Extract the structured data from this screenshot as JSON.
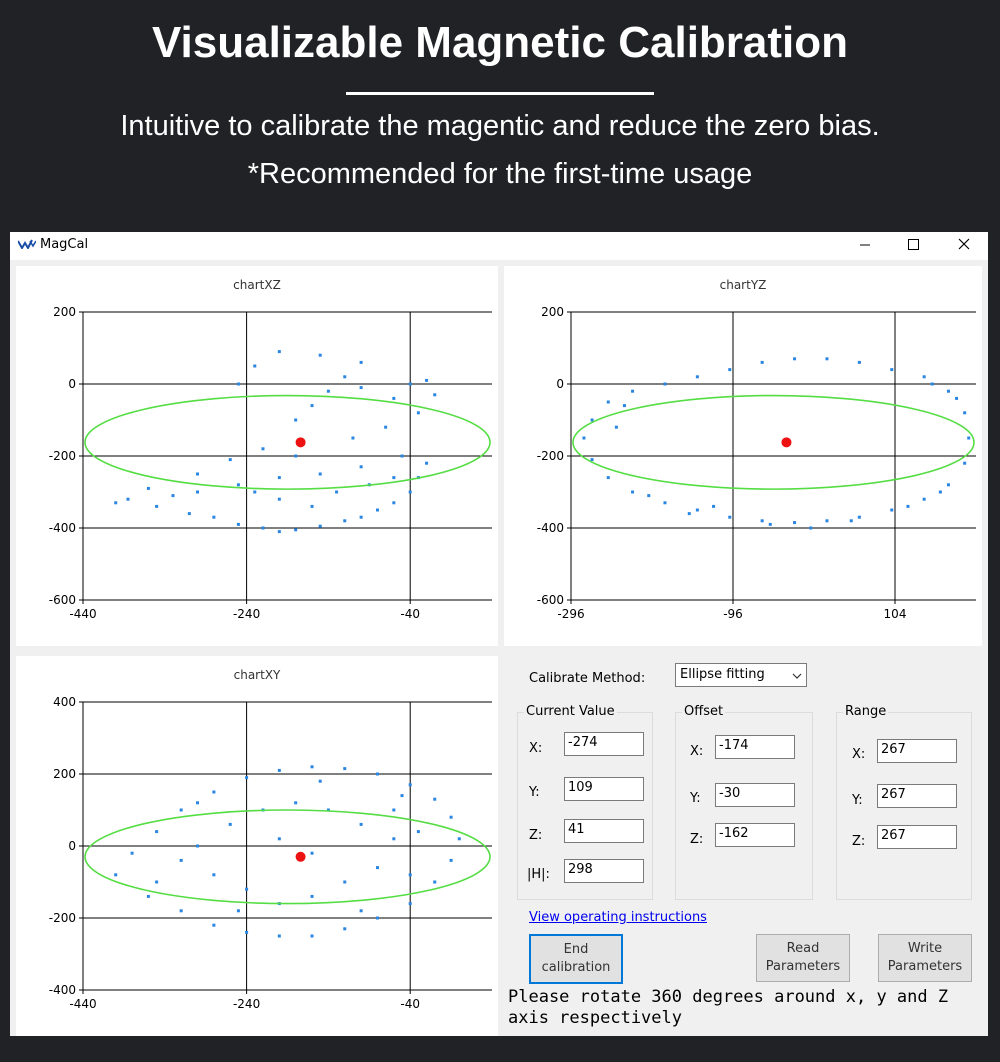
{
  "banner": {
    "title": "Visualizable Magnetic Calibration",
    "line1": "Intuitive to calibrate the magentic and reduce the zero bias.",
    "line2": "*Recommended for the first-time usage"
  },
  "window": {
    "title": "MagCal",
    "icon": "app-logo-icon",
    "controls": [
      "minimize-icon",
      "maximize-icon",
      "close-icon"
    ]
  },
  "colors": {
    "point": "#2a86e0",
    "ellipse": "#55dd44",
    "center": "#ee1111",
    "accent": "#0078d7"
  },
  "chart_data": [
    {
      "type": "scatter",
      "title": "chartXZ",
      "xlim": [
        -440,
        60
      ],
      "ylim": [
        -600,
        200
      ],
      "x_ticks": [
        -440,
        -240,
        -40
      ],
      "y_ticks": [
        200,
        0,
        -200,
        -400,
        -600
      ],
      "grid": true,
      "center_point": [
        -174,
        -162
      ],
      "ellipse": {
        "cx": -174,
        "cy": -162,
        "rx": 267,
        "ry": 267
      },
      "points": [
        [
          -385,
          -320
        ],
        [
          -350,
          -340
        ],
        [
          -310,
          -360
        ],
        [
          -280,
          -370
        ],
        [
          -250,
          -390
        ],
        [
          -220,
          -400
        ],
        [
          -200,
          -410
        ],
        [
          -180,
          -405
        ],
        [
          -150,
          -395
        ],
        [
          -120,
          -380
        ],
        [
          -100,
          -370
        ],
        [
          -80,
          -350
        ],
        [
          -60,
          -330
        ],
        [
          -40,
          -300
        ],
        [
          -30,
          -260
        ],
        [
          -20,
          -220
        ],
        [
          -50,
          -200
        ],
        [
          -100,
          -230
        ],
        [
          -150,
          -250
        ],
        [
          -200,
          -260
        ],
        [
          -250,
          -280
        ],
        [
          -300,
          -300
        ],
        [
          -330,
          -310
        ],
        [
          -180,
          -100
        ],
        [
          -160,
          -60
        ],
        [
          -140,
          -20
        ],
        [
          -120,
          20
        ],
        [
          -100,
          60
        ],
        [
          -150,
          80
        ],
        [
          -200,
          90
        ],
        [
          -230,
          50
        ],
        [
          -250,
          0
        ],
        [
          -100,
          -10
        ],
        [
          -60,
          -40
        ],
        [
          -40,
          0
        ],
        [
          -20,
          10
        ],
        [
          -10,
          -30
        ],
        [
          -30,
          -80
        ],
        [
          -70,
          -120
        ],
        [
          -110,
          -150
        ],
        [
          -180,
          -200
        ],
        [
          -220,
          -180
        ],
        [
          -260,
          -210
        ],
        [
          -300,
          -250
        ],
        [
          -360,
          -290
        ],
        [
          -400,
          -330
        ],
        [
          -230,
          -300
        ],
        [
          -200,
          -320
        ],
        [
          -160,
          -340
        ],
        [
          -130,
          -300
        ],
        [
          -90,
          -280
        ],
        [
          -60,
          -260
        ]
      ]
    },
    {
      "type": "scatter",
      "title": "chartYZ",
      "xlim": [
        -296,
        204
      ],
      "ylim": [
        -600,
        200
      ],
      "x_ticks": [
        -296,
        -96,
        104
      ],
      "y_ticks": [
        200,
        0,
        -200,
        -400,
        -600
      ],
      "grid": true,
      "center_point": [
        -30,
        -162
      ],
      "ellipse": {
        "cx": -30,
        "cy": -162,
        "rx": 267,
        "ry": 267
      },
      "points": [
        [
          -280,
          -150
        ],
        [
          -270,
          -100
        ],
        [
          -250,
          -50
        ],
        [
          -220,
          -20
        ],
        [
          -180,
          0
        ],
        [
          -140,
          20
        ],
        [
          -100,
          40
        ],
        [
          -60,
          60
        ],
        [
          -20,
          70
        ],
        [
          20,
          70
        ],
        [
          60,
          60
        ],
        [
          100,
          40
        ],
        [
          140,
          20
        ],
        [
          170,
          -20
        ],
        [
          190,
          -80
        ],
        [
          195,
          -150
        ],
        [
          190,
          -220
        ],
        [
          170,
          -280
        ],
        [
          140,
          -320
        ],
        [
          100,
          -350
        ],
        [
          60,
          -370
        ],
        [
          20,
          -380
        ],
        [
          -20,
          -385
        ],
        [
          -60,
          -380
        ],
        [
          -100,
          -370
        ],
        [
          -140,
          -350
        ],
        [
          -180,
          -330
        ],
        [
          -220,
          -300
        ],
        [
          -250,
          -260
        ],
        [
          -270,
          -210
        ],
        [
          -200,
          -310
        ],
        [
          -150,
          -360
        ],
        [
          -50,
          -390
        ],
        [
          50,
          -380
        ],
        [
          120,
          -340
        ],
        [
          160,
          -300
        ],
        [
          -240,
          -120
        ],
        [
          -230,
          -60
        ],
        [
          150,
          0
        ],
        [
          180,
          -40
        ],
        [
          -120,
          -340
        ],
        [
          0,
          -400
        ]
      ]
    },
    {
      "type": "scatter",
      "title": "chartXY",
      "xlim": [
        -440,
        60
      ],
      "ylim": [
        -400,
        400
      ],
      "x_ticks": [
        -440,
        -240,
        -40
      ],
      "y_ticks": [
        400,
        200,
        0,
        -200,
        -400
      ],
      "grid": true,
      "center_point": [
        -174,
        -30
      ],
      "ellipse": {
        "cx": -174,
        "cy": -30,
        "rx": 267,
        "ry": 267
      },
      "points": [
        [
          -400,
          -80
        ],
        [
          -380,
          -20
        ],
        [
          -350,
          40
        ],
        [
          -320,
          100
        ],
        [
          -280,
          150
        ],
        [
          -240,
          190
        ],
        [
          -200,
          210
        ],
        [
          -160,
          220
        ],
        [
          -120,
          215
        ],
        [
          -80,
          200
        ],
        [
          -40,
          170
        ],
        [
          -10,
          130
        ],
        [
          10,
          80
        ],
        [
          20,
          20
        ],
        [
          10,
          -40
        ],
        [
          -10,
          -100
        ],
        [
          -40,
          -160
        ],
        [
          -80,
          -200
        ],
        [
          -120,
          -230
        ],
        [
          -160,
          -250
        ],
        [
          -200,
          -250
        ],
        [
          -240,
          -240
        ],
        [
          -280,
          -220
        ],
        [
          -320,
          -180
        ],
        [
          -360,
          -140
        ],
        [
          -300,
          0
        ],
        [
          -260,
          60
        ],
        [
          -220,
          100
        ],
        [
          -180,
          120
        ],
        [
          -140,
          100
        ],
        [
          -100,
          60
        ],
        [
          -60,
          20
        ],
        [
          -80,
          -60
        ],
        [
          -120,
          -100
        ],
        [
          -160,
          -140
        ],
        [
          -200,
          -160
        ],
        [
          -240,
          -120
        ],
        [
          -280,
          -80
        ],
        [
          -320,
          -40
        ],
        [
          -60,
          100
        ],
        [
          -30,
          40
        ],
        [
          -40,
          -80
        ],
        [
          -200,
          20
        ],
        [
          -160,
          -20
        ],
        [
          -250,
          -180
        ],
        [
          -100,
          -180
        ],
        [
          -350,
          -100
        ],
        [
          -300,
          120
        ],
        [
          -150,
          180
        ],
        [
          -50,
          140
        ]
      ]
    }
  ],
  "form": {
    "method_label": "Calibrate Method:",
    "method_value": "Ellipse fitting",
    "current": {
      "title": "Current Value",
      "x_label": "X:",
      "x": "-274",
      "y_label": "Y:",
      "y": "109",
      "z_label": "Z:",
      "z": "41",
      "h_label": "|H|:",
      "h": "298"
    },
    "offset": {
      "title": "Offset",
      "x_label": "X:",
      "x": "-174",
      "y_label": "Y:",
      "y": "-30",
      "z_label": "Z:",
      "z": "-162"
    },
    "range": {
      "title": "Range",
      "x_label": "X:",
      "x": "267",
      "y_label": "Y:",
      "y": "267",
      "z_label": "Z:",
      "z": "267"
    },
    "instructions_link": "View operating instructions",
    "end_calibration_l1": "End",
    "end_calibration_l2": "calibration",
    "read_params_l1": "Read",
    "read_params_l2": "Parameters",
    "write_params_l1": "Write",
    "write_params_l2": "Parameters",
    "status_l1": "Please rotate 360 degrees around x, y and Z",
    "status_l2": "axis respectively"
  }
}
